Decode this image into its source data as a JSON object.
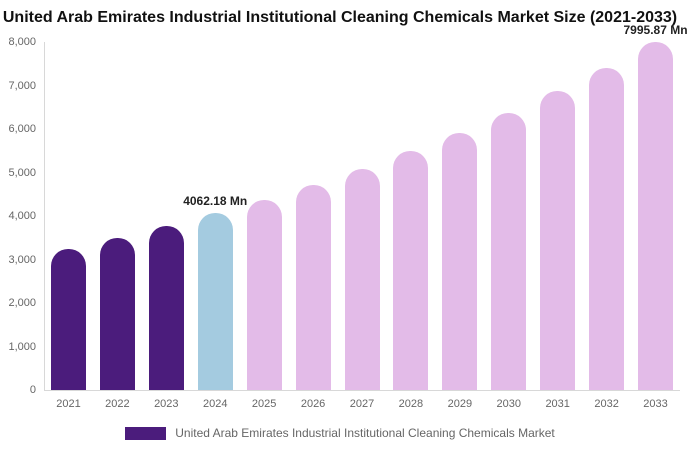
{
  "title": "United Arab Emirates Industrial Institutional Cleaning Chemicals Market Size (2021-2033)",
  "legend": {
    "label": "United Arab Emirates Industrial Institutional Cleaning Chemicals Market",
    "swatch_color": "#4B1C7C"
  },
  "colors": {
    "historical_bar": "#4B1C7C",
    "base_year_bar": "#A4CBE0",
    "forecast_bar": "#E3BBE8",
    "axis_line": "#D8D8D8",
    "tick_text": "#666666",
    "data_label_text": "#222222",
    "title_text": "#111111"
  },
  "chart_data": {
    "type": "bar",
    "title": "United Arab Emirates Industrial Institutional Cleaning Chemicals Market Size (2021-2033)",
    "series_name": "United Arab Emirates Industrial Institutional Cleaning Chemicals Market",
    "categories": [
      "2021",
      "2022",
      "2023",
      "2024",
      "2025",
      "2026",
      "2027",
      "2028",
      "2029",
      "2030",
      "2031",
      "2032",
      "2033"
    ],
    "values": [
      3242,
      3495,
      3768,
      4062.18,
      4379,
      4721,
      5090,
      5488,
      5916,
      6378,
      6876,
      7413,
      7995.87
    ],
    "unit": "Mn",
    "xlabel": "",
    "ylabel": "",
    "ylim": [
      0,
      8000
    ],
    "ytick_step": 1000,
    "ytick_labels": [
      "0",
      "1,000",
      "2,000",
      "3,000",
      "4,000",
      "5,000",
      "6,000",
      "7,000",
      "8,000"
    ],
    "grid": false,
    "legend_position": "bottom",
    "bar_colors": [
      "#4B1C7C",
      "#4B1C7C",
      "#4B1C7C",
      "#A4CBE0",
      "#E3BBE8",
      "#E3BBE8",
      "#E3BBE8",
      "#E3BBE8",
      "#E3BBE8",
      "#E3BBE8",
      "#E3BBE8",
      "#E3BBE8",
      "#E3BBE8"
    ],
    "data_labels": [
      {
        "category": "2024",
        "text": "4062.18 Mn"
      },
      {
        "category": "2033",
        "text": "7995.87 Mn"
      }
    ]
  }
}
